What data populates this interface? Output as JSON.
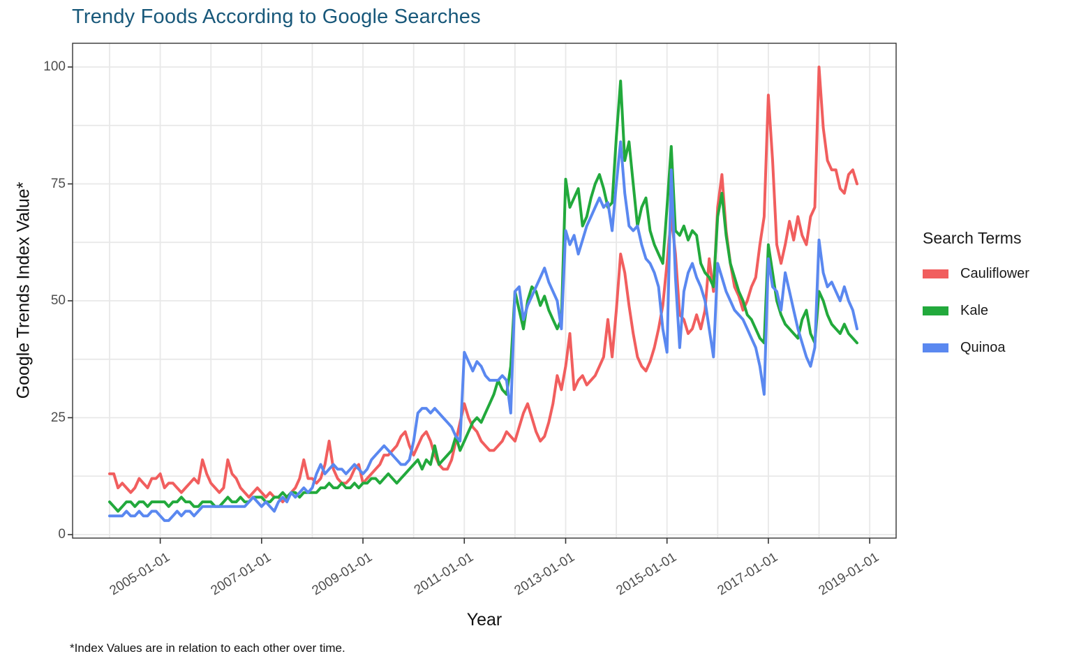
{
  "title": "Trendy Foods According to Google Searches",
  "footnote": "*Index Values are in relation to each other over time.",
  "colors": {
    "title_text": "#18587A",
    "gridline": "#E8E8E8",
    "axis_tick_text": "#4D4D4D",
    "panel_border": "#333333",
    "background": "#FFFFFF"
  },
  "legend": {
    "title": "Search Terms",
    "entries": [
      {
        "label": "Cauliflower",
        "color": "#F15E5E"
      },
      {
        "label": "Kale",
        "color": "#22A93C"
      },
      {
        "label": "Quinoa",
        "color": "#5A88F0"
      }
    ]
  },
  "chart_data": {
    "type": "line",
    "title": "Trendy Foods According to Google Searches",
    "xlabel": "Year",
    "ylabel": "Google Trends Index Value*",
    "legend_title": "Search Terms",
    "legend_position": "right",
    "grid": true,
    "ylim": [
      0,
      100
    ],
    "y_major_ticks": [
      0,
      25,
      50,
      75,
      100
    ],
    "y_minor_ticks": [
      12.5,
      37.5,
      62.5,
      87.5
    ],
    "x_start_month": "2004-01",
    "x_end_month": "2018-10",
    "x_tick_labels": [
      "2005-01-01",
      "2007-01-01",
      "2009-01-01",
      "2011-01-01",
      "2013-01-01",
      "2015-01-01",
      "2017-01-01",
      "2019-01-01"
    ],
    "x_gridline_years": [
      2004,
      2005,
      2006,
      2007,
      2008,
      2009,
      2010,
      2011,
      2012,
      2013,
      2014,
      2015,
      2016,
      2017,
      2018,
      2019
    ],
    "series": [
      {
        "name": "Cauliflower",
        "color": "#F15E5E",
        "values": [
          13,
          13,
          10,
          11,
          10,
          9,
          10,
          12,
          11,
          10,
          12,
          12,
          13,
          10,
          11,
          11,
          10,
          9,
          10,
          11,
          12,
          11,
          16,
          13,
          11,
          10,
          9,
          10,
          16,
          13,
          12,
          10,
          9,
          8,
          9,
          10,
          9,
          8,
          9,
          8,
          8,
          7,
          8,
          9,
          10,
          12,
          16,
          12,
          12,
          11,
          12,
          15,
          20,
          14,
          12,
          11,
          11,
          12,
          14,
          15,
          11,
          12,
          13,
          14,
          15,
          17,
          17,
          18,
          19,
          21,
          22,
          19,
          17,
          19,
          21,
          22,
          20,
          17,
          15,
          14,
          14,
          16,
          20,
          24,
          28,
          25,
          23,
          22,
          20,
          19,
          18,
          18,
          19,
          20,
          22,
          21,
          20,
          23,
          26,
          28,
          25,
          22,
          20,
          21,
          24,
          28,
          34,
          31,
          36,
          43,
          31,
          33,
          34,
          32,
          33,
          34,
          36,
          38,
          46,
          38,
          48,
          60,
          56,
          49,
          43,
          38,
          36,
          35,
          37,
          40,
          44,
          49,
          58,
          68,
          60,
          47,
          46,
          43,
          44,
          47,
          44,
          48,
          59,
          52,
          70,
          77,
          65,
          58,
          53,
          51,
          48,
          50,
          53,
          55,
          62,
          68,
          94,
          80,
          62,
          58,
          62,
          67,
          63,
          68,
          64,
          62,
          68,
          70,
          100,
          87,
          80,
          78,
          78,
          74,
          73,
          77,
          78,
          75
        ]
      },
      {
        "name": "Kale",
        "color": "#22A93C",
        "values": [
          7,
          6,
          5,
          6,
          7,
          7,
          6,
          7,
          7,
          6,
          7,
          7,
          7,
          7,
          6,
          7,
          7,
          8,
          7,
          7,
          6,
          6,
          7,
          7,
          7,
          6,
          6,
          7,
          8,
          7,
          7,
          8,
          7,
          7,
          8,
          8,
          8,
          7,
          7,
          8,
          8,
          9,
          8,
          9,
          9,
          8,
          9,
          9,
          9,
          9,
          10,
          10,
          11,
          10,
          10,
          11,
          10,
          10,
          11,
          10,
          11,
          11,
          12,
          12,
          11,
          12,
          13,
          12,
          11,
          12,
          13,
          14,
          15,
          16,
          14,
          16,
          15,
          19,
          15,
          16,
          17,
          18,
          21,
          18,
          20,
          22,
          24,
          25,
          24,
          26,
          28,
          30,
          33,
          31,
          30,
          36,
          52,
          48,
          44,
          50,
          53,
          52,
          49,
          51,
          48,
          46,
          44,
          46,
          76,
          70,
          72,
          74,
          66,
          68,
          72,
          75,
          77,
          74,
          70,
          71,
          85,
          97,
          80,
          84,
          75,
          66,
          70,
          72,
          65,
          62,
          60,
          58,
          70,
          83,
          65,
          64,
          66,
          63,
          65,
          64,
          58,
          56,
          55,
          53,
          68,
          73,
          64,
          58,
          55,
          52,
          50,
          47,
          46,
          44,
          42,
          41,
          62,
          56,
          50,
          47,
          45,
          44,
          43,
          42,
          46,
          48,
          43,
          41,
          52,
          50,
          47,
          45,
          44,
          43,
          45,
          43,
          42,
          41
        ]
      },
      {
        "name": "Quinoa",
        "color": "#5A88F0",
        "values": [
          4,
          4,
          4,
          4,
          5,
          4,
          4,
          5,
          4,
          4,
          5,
          5,
          4,
          3,
          3,
          4,
          5,
          4,
          5,
          5,
          4,
          5,
          6,
          6,
          6,
          6,
          6,
          6,
          6,
          6,
          6,
          6,
          6,
          7,
          8,
          7,
          6,
          7,
          6,
          5,
          7,
          8,
          7,
          9,
          8,
          9,
          10,
          9,
          10,
          13,
          15,
          13,
          14,
          15,
          14,
          14,
          13,
          14,
          15,
          14,
          13,
          14,
          16,
          17,
          18,
          19,
          18,
          17,
          16,
          15,
          15,
          16,
          20,
          26,
          27,
          27,
          26,
          27,
          26,
          25,
          24,
          23,
          21,
          20,
          39,
          37,
          35,
          37,
          36,
          34,
          33,
          33,
          33,
          34,
          33,
          26,
          52,
          53,
          46,
          49,
          51,
          53,
          55,
          57,
          54,
          52,
          50,
          44,
          65,
          62,
          64,
          60,
          63,
          66,
          68,
          70,
          72,
          70,
          71,
          65,
          75,
          84,
          73,
          66,
          65,
          66,
          62,
          59,
          58,
          56,
          53,
          44,
          39,
          78,
          55,
          40,
          52,
          56,
          58,
          55,
          53,
          50,
          44,
          38,
          58,
          55,
          52,
          50,
          48,
          47,
          46,
          44,
          42,
          40,
          36,
          30,
          59,
          53,
          52,
          48,
          56,
          52,
          48,
          44,
          41,
          38,
          36,
          40,
          63,
          56,
          53,
          54,
          52,
          50,
          53,
          50,
          48,
          44
        ]
      }
    ]
  }
}
